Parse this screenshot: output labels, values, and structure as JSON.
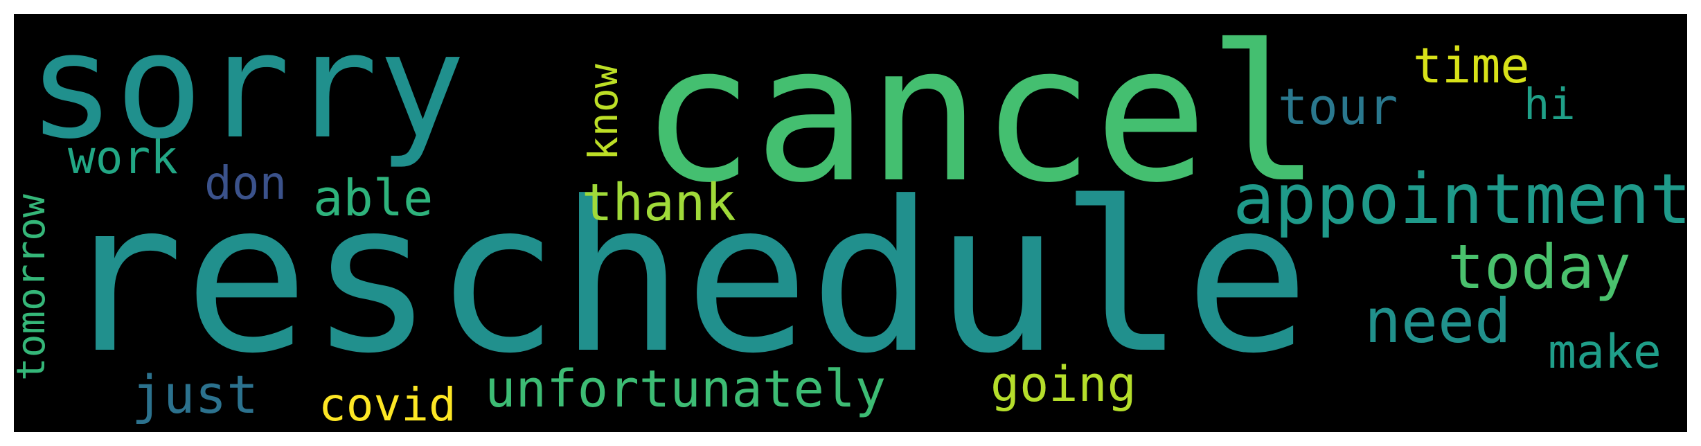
{
  "words": [
    {
      "text": "reschedule",
      "color": "#21908d"
    },
    {
      "text": "cancel",
      "color": "#44bf70"
    },
    {
      "text": "sorry",
      "color": "#20908d"
    },
    {
      "text": "appointment",
      "color": "#1f9a8a"
    },
    {
      "text": "today",
      "color": "#4ac16d"
    },
    {
      "text": "need",
      "color": "#21918c"
    },
    {
      "text": "unfortunately",
      "color": "#3dbc74"
    },
    {
      "text": "thank",
      "color": "#a0da39"
    },
    {
      "text": "able",
      "color": "#2eb37c"
    },
    {
      "text": "just",
      "color": "#2c728e"
    },
    {
      "text": "going",
      "color": "#b5de2b"
    },
    {
      "text": "covid",
      "color": "#fde725"
    },
    {
      "text": "work",
      "color": "#22a785"
    },
    {
      "text": "don",
      "color": "#3b528b"
    },
    {
      "text": "tour",
      "color": "#2a788e"
    },
    {
      "text": "time",
      "color": "#d8e219"
    },
    {
      "text": "hi",
      "color": "#1fa088"
    },
    {
      "text": "make",
      "color": "#1f9e89"
    },
    {
      "text": "know",
      "color": "#bddf26"
    },
    {
      "text": "tomorrow",
      "color": "#35b779"
    }
  ]
}
